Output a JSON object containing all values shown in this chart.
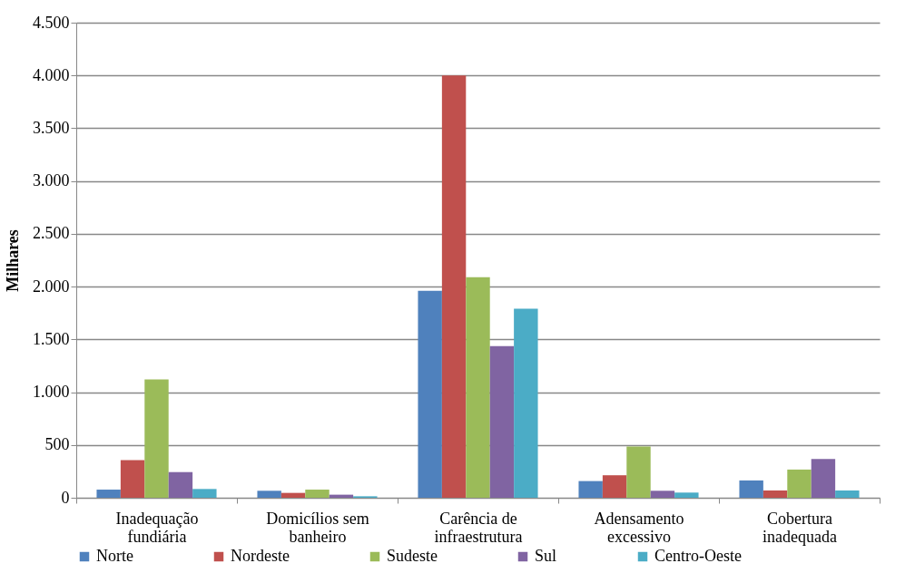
{
  "chart_data": {
    "type": "bar",
    "ylabel": "Milhares",
    "categories": [
      "Inadequação fundiária",
      "Domicílios sem banheiro",
      "Carência de infraestrutura",
      "Adensamento excessivo",
      "Cobertura inadequada"
    ],
    "series": [
      {
        "name": "Norte",
        "color": "#4f81bd",
        "values": [
          77,
          66,
          1960,
          158,
          164
        ]
      },
      {
        "name": "Nordeste",
        "color": "#c0504d",
        "values": [
          357,
          46,
          4000,
          213,
          69
        ]
      },
      {
        "name": "Sudeste",
        "color": "#9bbb59",
        "values": [
          1120,
          77,
          2090,
          486,
          267
        ]
      },
      {
        "name": "Sul",
        "color": "#8064a2",
        "values": [
          243,
          29,
          1437,
          66,
          368
        ]
      },
      {
        "name": "Centro-Oeste",
        "color": "#4bacc6",
        "values": [
          83,
          14,
          1790,
          49,
          69
        ]
      }
    ],
    "ylim": [
      0,
      4500
    ],
    "yticks": [
      {
        "value": 0,
        "label": "0"
      },
      {
        "value": 500,
        "label": "500"
      },
      {
        "value": 1000,
        "label": "1.000"
      },
      {
        "value": 1500,
        "label": "1.500"
      },
      {
        "value": 2000,
        "label": "2.000"
      },
      {
        "value": 2500,
        "label": "2.500"
      },
      {
        "value": 3000,
        "label": "3.000"
      },
      {
        "value": 3500,
        "label": "3.500"
      },
      {
        "value": 4000,
        "label": "4.000"
      },
      {
        "value": 4500,
        "label": "4.500"
      }
    ],
    "grid": "y",
    "legend": "bottom"
  }
}
